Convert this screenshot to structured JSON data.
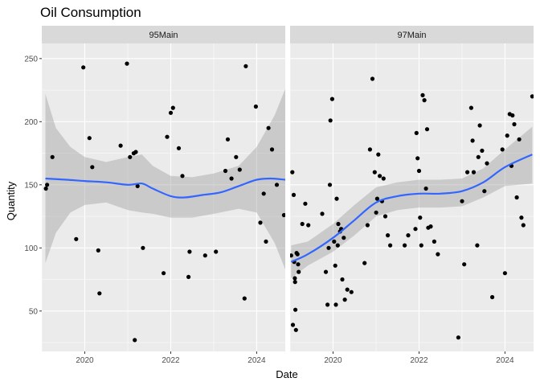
{
  "chart_data": {
    "type": "scatter",
    "title": "Oil Consumption",
    "xlabel": "Date",
    "ylabel": "Quantity",
    "xlim": [
      "2019-01-01",
      "2024-08-31"
    ],
    "ylim": [
      18,
      262
    ],
    "x_ticks": [
      "2020",
      "2022",
      "2024"
    ],
    "y_ticks": [
      "50",
      "100",
      "150",
      "200",
      "250"
    ],
    "grid": true,
    "facets": [
      {
        "label": "95Main",
        "points": [
          [
            "2019-02-05",
            147
          ],
          [
            "2019-02-15",
            150
          ],
          [
            "2019-04-01",
            172
          ],
          [
            "2019-10-20",
            107
          ],
          [
            "2019-12-20",
            243
          ],
          [
            "2020-02-10",
            187
          ],
          [
            "2020-03-05",
            164
          ],
          [
            "2020-04-25",
            98
          ],
          [
            "2020-05-05",
            64
          ],
          [
            "2020-11-01",
            181
          ],
          [
            "2020-12-25",
            246
          ],
          [
            "2021-01-20",
            172
          ],
          [
            "2021-02-20",
            175
          ],
          [
            "2021-03-10",
            176
          ],
          [
            "2021-03-01",
            27
          ],
          [
            "2021-03-25",
            149
          ],
          [
            "2021-05-10",
            100
          ],
          [
            "2021-11-01",
            80
          ],
          [
            "2021-12-01",
            188
          ],
          [
            "2022-01-01",
            207
          ],
          [
            "2022-01-20",
            211
          ],
          [
            "2022-03-10",
            179
          ],
          [
            "2022-04-10",
            157
          ],
          [
            "2022-06-10",
            97
          ],
          [
            "2022-06-01",
            77
          ],
          [
            "2022-10-20",
            94
          ],
          [
            "2023-01-20",
            97
          ],
          [
            "2023-04-10",
            161
          ],
          [
            "2023-05-01",
            186
          ],
          [
            "2023-06-01",
            155
          ],
          [
            "2023-07-10",
            172
          ],
          [
            "2023-08-10",
            162
          ],
          [
            "2023-09-20",
            60
          ],
          [
            "2023-10-01",
            244
          ],
          [
            "2024-03-20",
            105
          ],
          [
            "2023-12-25",
            212
          ],
          [
            "2024-02-01",
            120
          ],
          [
            "2024-03-01",
            143
          ],
          [
            "2024-04-10",
            195
          ],
          [
            "2024-05-10",
            178
          ],
          [
            "2024-06-20",
            150
          ],
          [
            "2024-08-20",
            126
          ]
        ],
        "smooth": [
          [
            "2019-02-01",
            155
          ],
          [
            "2019-08-01",
            154
          ],
          [
            "2020-01-01",
            153
          ],
          [
            "2020-07-01",
            152
          ],
          [
            "2021-01-01",
            150
          ],
          [
            "2021-05-01",
            151
          ],
          [
            "2021-08-01",
            147
          ],
          [
            "2022-01-01",
            141
          ],
          [
            "2022-05-01",
            140
          ],
          [
            "2022-10-01",
            142
          ],
          [
            "2023-03-01",
            144
          ],
          [
            "2023-08-01",
            149
          ],
          [
            "2024-01-01",
            154
          ],
          [
            "2024-05-01",
            155
          ],
          [
            "2024-08-31",
            154
          ]
        ],
        "band_upper": [
          [
            "2019-02-01",
            222
          ],
          [
            "2019-05-01",
            195
          ],
          [
            "2019-09-01",
            180
          ],
          [
            "2020-01-01",
            172
          ],
          [
            "2020-07-01",
            168
          ],
          [
            "2021-01-01",
            172
          ],
          [
            "2021-05-01",
            174
          ],
          [
            "2021-08-01",
            165
          ],
          [
            "2022-01-01",
            157
          ],
          [
            "2022-07-01",
            156
          ],
          [
            "2023-01-01",
            159
          ],
          [
            "2023-08-01",
            165
          ],
          [
            "2024-01-01",
            180
          ],
          [
            "2024-06-01",
            205
          ],
          [
            "2024-08-31",
            226
          ]
        ],
        "band_lower": [
          [
            "2019-02-01",
            88
          ],
          [
            "2019-05-01",
            112
          ],
          [
            "2019-09-01",
            128
          ],
          [
            "2020-01-01",
            134
          ],
          [
            "2020-07-01",
            136
          ],
          [
            "2021-01-01",
            130
          ],
          [
            "2021-05-01",
            128
          ],
          [
            "2021-08-01",
            127
          ],
          [
            "2022-01-01",
            124
          ],
          [
            "2022-07-01",
            124
          ],
          [
            "2023-01-01",
            127
          ],
          [
            "2023-08-01",
            131
          ],
          [
            "2024-01-01",
            128
          ],
          [
            "2024-06-01",
            104
          ],
          [
            "2024-08-31",
            83
          ]
        ]
      },
      {
        "label": "97Main",
        "points": [
          [
            "2019-01-10",
            94
          ],
          [
            "2019-01-20",
            160
          ],
          [
            "2019-02-01",
            142
          ],
          [
            "2019-02-05",
            89
          ],
          [
            "2019-02-10",
            76
          ],
          [
            "2019-02-12",
            73
          ],
          [
            "2019-02-15",
            51
          ],
          [
            "2019-01-25",
            39
          ],
          [
            "2019-02-20",
            35
          ],
          [
            "2019-02-25",
            96
          ],
          [
            "2019-03-05",
            95
          ],
          [
            "2019-03-10",
            87
          ],
          [
            "2019-03-15",
            81
          ],
          [
            "2019-04-15",
            119
          ],
          [
            "2019-05-10",
            135
          ],
          [
            "2019-06-05",
            118
          ],
          [
            "2019-10-01",
            127
          ],
          [
            "2019-11-01",
            81
          ],
          [
            "2019-11-15",
            55
          ],
          [
            "2019-11-25",
            100
          ],
          [
            "2019-12-05",
            150
          ],
          [
            "2019-12-10",
            201
          ],
          [
            "2019-12-25",
            218
          ],
          [
            "2020-01-10",
            105
          ],
          [
            "2020-01-20",
            86
          ],
          [
            "2020-01-25",
            55
          ],
          [
            "2020-02-01",
            139
          ],
          [
            "2020-02-10",
            102
          ],
          [
            "2020-02-15",
            119
          ],
          [
            "2020-03-01",
            113
          ],
          [
            "2020-03-10",
            115
          ],
          [
            "2020-03-20",
            75
          ],
          [
            "2020-04-01",
            108
          ],
          [
            "2020-04-10",
            59
          ],
          [
            "2020-05-01",
            67
          ],
          [
            "2020-06-05",
            65
          ],
          [
            "2020-09-25",
            88
          ],
          [
            "2020-10-20",
            118
          ],
          [
            "2020-11-10",
            178
          ],
          [
            "2020-12-01",
            234
          ],
          [
            "2020-12-20",
            160
          ],
          [
            "2021-01-01",
            128
          ],
          [
            "2021-01-10",
            139
          ],
          [
            "2021-01-20",
            174
          ],
          [
            "2021-02-01",
            157
          ],
          [
            "2021-02-20",
            137
          ],
          [
            "2021-03-05",
            155
          ],
          [
            "2021-03-20",
            125
          ],
          [
            "2021-04-10",
            110
          ],
          [
            "2021-05-01",
            102
          ],
          [
            "2021-09-01",
            102
          ],
          [
            "2021-10-01",
            110
          ],
          [
            "2021-12-01",
            115
          ],
          [
            "2021-12-10",
            191
          ],
          [
            "2021-12-20",
            171
          ],
          [
            "2022-01-01",
            161
          ],
          [
            "2022-01-10",
            124
          ],
          [
            "2022-01-20",
            102
          ],
          [
            "2022-02-01",
            221
          ],
          [
            "2022-02-15",
            217
          ],
          [
            "2022-03-01",
            147
          ],
          [
            "2022-03-10",
            194
          ],
          [
            "2022-03-20",
            116
          ],
          [
            "2022-04-10",
            117
          ],
          [
            "2022-05-10",
            105
          ],
          [
            "2022-06-10",
            95
          ],
          [
            "2022-12-01",
            29
          ],
          [
            "2023-01-01",
            137
          ],
          [
            "2023-01-20",
            87
          ],
          [
            "2023-02-15",
            160
          ],
          [
            "2023-03-20",
            211
          ],
          [
            "2023-04-01",
            185
          ],
          [
            "2023-04-10",
            160
          ],
          [
            "2023-05-10",
            102
          ],
          [
            "2023-05-20",
            172
          ],
          [
            "2023-06-01",
            197
          ],
          [
            "2023-06-20",
            177
          ],
          [
            "2023-07-10",
            145
          ],
          [
            "2023-08-01",
            167
          ],
          [
            "2023-09-15",
            61
          ],
          [
            "2023-12-10",
            178
          ],
          [
            "2024-01-01",
            80
          ],
          [
            "2024-01-20",
            189
          ],
          [
            "2024-02-10",
            206
          ],
          [
            "2024-02-25",
            165
          ],
          [
            "2024-03-05",
            205
          ],
          [
            "2024-03-20",
            198
          ],
          [
            "2024-04-10",
            140
          ],
          [
            "2024-05-01",
            186
          ],
          [
            "2024-05-20",
            124
          ],
          [
            "2024-06-05",
            118
          ],
          [
            "2024-08-20",
            220
          ]
        ],
        "smooth": [
          [
            "2019-01-10",
            89
          ],
          [
            "2019-06-01",
            95
          ],
          [
            "2020-01-01",
            108
          ],
          [
            "2020-07-01",
            122
          ],
          [
            "2021-01-01",
            136
          ],
          [
            "2021-07-01",
            141
          ],
          [
            "2022-01-01",
            143
          ],
          [
            "2022-07-01",
            143
          ],
          [
            "2023-01-01",
            145
          ],
          [
            "2023-07-01",
            152
          ],
          [
            "2024-01-01",
            164
          ],
          [
            "2024-08-20",
            174
          ]
        ],
        "band_upper": [
          [
            "2019-01-10",
            102
          ],
          [
            "2019-06-01",
            105
          ],
          [
            "2020-01-01",
            119
          ],
          [
            "2020-07-01",
            134
          ],
          [
            "2021-01-01",
            148
          ],
          [
            "2021-07-01",
            152
          ],
          [
            "2022-01-01",
            154
          ],
          [
            "2022-07-01",
            154
          ],
          [
            "2023-01-01",
            155
          ],
          [
            "2023-07-01",
            163
          ],
          [
            "2024-01-01",
            178
          ],
          [
            "2024-08-20",
            196
          ]
        ],
        "band_lower": [
          [
            "2019-01-10",
            76
          ],
          [
            "2019-06-01",
            86
          ],
          [
            "2020-01-01",
            97
          ],
          [
            "2020-07-01",
            110
          ],
          [
            "2021-01-01",
            125
          ],
          [
            "2021-07-01",
            130
          ],
          [
            "2022-01-01",
            132
          ],
          [
            "2022-07-01",
            132
          ],
          [
            "2023-01-01",
            133
          ],
          [
            "2023-07-01",
            140
          ],
          [
            "2024-01-01",
            149
          ],
          [
            "2024-08-20",
            151
          ]
        ]
      }
    ],
    "colors": {
      "points": "#000000",
      "smooth_line": "#3366FF",
      "band": "#999999",
      "panel_bg": "#EBEBEB",
      "strip_bg": "#D9D9D9",
      "grid": "#FFFFFF"
    }
  }
}
